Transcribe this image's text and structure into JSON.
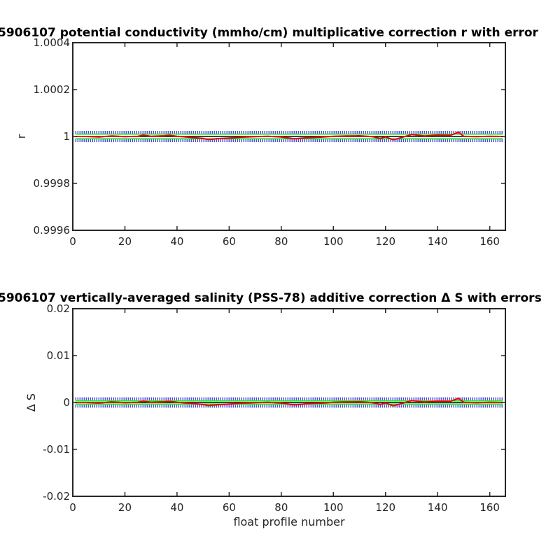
{
  "chart_data": [
    {
      "type": "line",
      "title": "5906107 potential conductivity (mmho/cm) multiplicative correction r with error",
      "xlabel": "",
      "ylabel": "r",
      "xlim": [
        0,
        166
      ],
      "ylim": [
        0.9996,
        1.0004
      ],
      "xticks": [
        0,
        20,
        40,
        60,
        80,
        100,
        120,
        140,
        160
      ],
      "xtick_labels": [
        "0",
        "20",
        "40",
        "60",
        "80",
        "100",
        "120",
        "140",
        "160"
      ],
      "yticks": [
        0.9996,
        0.9998,
        1,
        1.0002,
        1.0004
      ],
      "ytick_labels": [
        "0.9996",
        "0.9998",
        "1",
        "1.0002",
        "1.0004"
      ],
      "grid": false,
      "series": [
        {
          "color": "#0000cc",
          "style": "dotted",
          "x": [
            1,
            165
          ],
          "y": [
            1.000018,
            1.000018
          ]
        },
        {
          "color": "#0000cc",
          "style": "dotted",
          "x": [
            1,
            165
          ],
          "y": [
            0.999982,
            0.999982
          ]
        },
        {
          "color": "#00ee00",
          "style": "solid",
          "x": [
            1,
            165
          ],
          "y": [
            1.00001,
            1.00001
          ]
        },
        {
          "color": "#00ee00",
          "style": "solid",
          "x": [
            1,
            165
          ],
          "y": [
            0.99999,
            0.99999
          ]
        },
        {
          "color": "#000000",
          "style": "solid",
          "x": [
            1,
            165
          ],
          "y": [
            1.0,
            1.0
          ]
        },
        {
          "color": "#ee0000",
          "style": "solid",
          "x": [
            1,
            5,
            10,
            15,
            20,
            25,
            27,
            30,
            35,
            37,
            40,
            45,
            50,
            52,
            55,
            60,
            65,
            70,
            75,
            80,
            85,
            90,
            95,
            100,
            105,
            110,
            115,
            118,
            120,
            123,
            125,
            130,
            135,
            140,
            145,
            148,
            150,
            155,
            160,
            165
          ],
          "y": [
            1.0,
            1.0,
            0.999998,
            1.000002,
            0.999999,
            1.000001,
            1.000006,
            1.000001,
            1.000003,
            1.000005,
            1.000001,
            0.999996,
            0.999992,
            0.999987,
            0.99999,
            0.999993,
            0.999997,
            0.999999,
            1.000001,
            0.999998,
            0.99999,
            0.999995,
            0.999997,
            1.000001,
            1.000002,
            1.000003,
            0.999999,
            0.999992,
            0.999998,
            0.999986,
            0.999992,
            1.000008,
            1.000002,
            1.000006,
            1.000005,
            1.000018,
            1.000001,
            0.999999,
            1.000001,
            1.0
          ]
        }
      ]
    },
    {
      "type": "line",
      "title": "5906107 vertically-averaged salinity (PSS-78) additive correction Δ S with errors",
      "xlabel": "float profile number",
      "ylabel": "Δ S",
      "xlim": [
        0,
        166
      ],
      "ylim": [
        -0.02,
        0.02
      ],
      "xticks": [
        0,
        20,
        40,
        60,
        80,
        100,
        120,
        140,
        160
      ],
      "xtick_labels": [
        "0",
        "20",
        "40",
        "60",
        "80",
        "100",
        "120",
        "140",
        "160"
      ],
      "yticks": [
        -0.02,
        -0.01,
        0,
        0.01,
        0.02
      ],
      "ytick_labels": [
        "-0.02",
        "-0.01",
        "0",
        "0.01",
        "0.02"
      ],
      "grid": false,
      "series": [
        {
          "color": "#0000cc",
          "style": "dotted",
          "x": [
            1,
            165
          ],
          "y": [
            0.0008,
            0.0008
          ]
        },
        {
          "color": "#0000cc",
          "style": "dotted",
          "x": [
            1,
            165
          ],
          "y": [
            -0.0008,
            -0.0008
          ]
        },
        {
          "color": "#00ee00",
          "style": "solid",
          "x": [
            1,
            165
          ],
          "y": [
            0.00035,
            0.00035
          ]
        },
        {
          "color": "#00ee00",
          "style": "solid",
          "x": [
            1,
            165
          ],
          "y": [
            -0.00035,
            -0.00035
          ]
        },
        {
          "color": "#000000",
          "style": "solid",
          "x": [
            1,
            165
          ],
          "y": [
            0.0,
            0.0
          ]
        },
        {
          "color": "#ee0000",
          "style": "solid",
          "x": [
            1,
            5,
            10,
            15,
            20,
            25,
            27,
            30,
            35,
            37,
            40,
            45,
            50,
            52,
            55,
            60,
            65,
            70,
            75,
            80,
            85,
            90,
            95,
            100,
            105,
            110,
            115,
            118,
            120,
            123,
            125,
            130,
            135,
            140,
            145,
            148,
            150,
            155,
            160,
            165
          ],
          "y": [
            0.0,
            0.0,
            -0.0001,
            0.0001,
            -5e-05,
            5e-05,
            0.0003,
            5e-05,
            0.00015,
            0.00025,
            5e-05,
            -0.0002,
            -0.0004,
            -0.00065,
            -0.0005,
            -0.00035,
            -0.00015,
            -5e-05,
            5e-05,
            -0.0001,
            -0.0005,
            -0.00025,
            -0.00015,
            5e-05,
            0.0001,
            0.00015,
            -5e-05,
            -0.0004,
            -0.0001,
            -0.0007,
            -0.0004,
            0.0004,
            0.0001,
            0.0003,
            0.00025,
            0.0009,
            5e-05,
            -5e-05,
            5e-05,
            0.0
          ]
        }
      ]
    }
  ]
}
